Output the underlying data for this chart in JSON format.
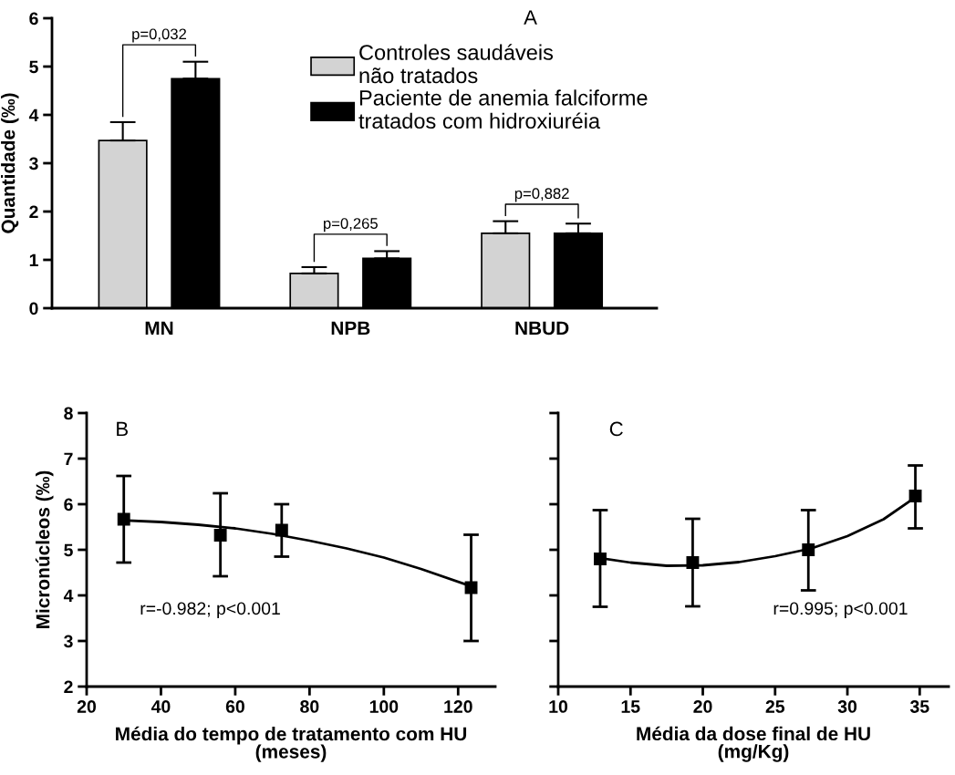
{
  "chart_data": [
    {
      "type": "bar",
      "ylabel": "Quantidade (‰)",
      "categories": [
        "MN",
        "NPB",
        "NBUD"
      ],
      "series": [
        {
          "name": "Controles saudáveis\nnão tratados",
          "color": "#d3d3d3",
          "values": [
            3.47,
            0.72,
            1.55
          ],
          "errors": [
            [
              3.47,
              3.85
            ],
            [
              0.72,
              0.85
            ],
            [
              1.55,
              1.8
            ]
          ]
        },
        {
          "name": "Paciente de anemia falciforme\ntratados com hidroxiuréia",
          "color": "#000000",
          "values": [
            4.75,
            1.03,
            1.55
          ],
          "errors": [
            [
              4.75,
              5.1
            ],
            [
              1.03,
              1.18
            ],
            [
              1.55,
              1.75
            ]
          ]
        }
      ],
      "ylim": [
        0,
        6
      ],
      "yticks": [
        0,
        1,
        2,
        3,
        4,
        5,
        6
      ],
      "legend": "top right",
      "annotations": [
        "p=0,032",
        "p=0,265",
        "p=0,882",
        "A"
      ]
    },
    {
      "type": "scatter",
      "xlabel": "Média do tempo de tratamento com HU\n(meses)",
      "ylabel": "Micronúcleos (‰)",
      "series": [
        {
          "type": "scatter",
          "marker": "square",
          "color": "#000000",
          "x": [
            30,
            56,
            72.5,
            123.5
          ],
          "values": [
            5.67,
            5.32,
            5.43,
            4.17
          ],
          "errors": [
            [
              4.72,
              6.62
            ],
            [
              4.42,
              6.24
            ],
            [
              4.85,
              6.0
            ],
            [
              3.0,
              5.33
            ]
          ]
        },
        {
          "type": "line",
          "color": "#000000",
          "x": [
            31,
            40,
            50,
            60,
            70,
            80,
            90,
            100,
            110,
            123.5
          ],
          "values": [
            5.64,
            5.61,
            5.55,
            5.47,
            5.35,
            5.2,
            5.03,
            4.83,
            4.58,
            4.2
          ]
        }
      ],
      "xlim": [
        20,
        130
      ],
      "xticks": [
        20,
        40,
        60,
        80,
        100,
        120
      ],
      "ylim": [
        2,
        8
      ],
      "yticks": [
        2,
        3,
        4,
        5,
        6,
        7,
        8
      ],
      "annotations": [
        "B",
        "r=-0.982; p<0.001"
      ]
    },
    {
      "type": "scatter",
      "xlabel": "Média da dose final de HU\n(mg/Kg)",
      "tick_labels": "x",
      "series": [
        {
          "type": "scatter",
          "marker": "square",
          "color": "#000000",
          "x": [
            12.9,
            19.3,
            27.3,
            34.7
          ],
          "values": [
            4.8,
            4.72,
            5.0,
            6.18
          ],
          "errors": [
            [
              3.75,
              5.87
            ],
            [
              3.76,
              5.68
            ],
            [
              4.11,
              5.87
            ],
            [
              5.47,
              6.85
            ]
          ]
        },
        {
          "type": "line",
          "color": "#000000",
          "x": [
            12.9,
            15,
            17.5,
            20,
            22.5,
            25,
            27.5,
            30,
            32.5,
            34.7
          ],
          "values": [
            4.82,
            4.72,
            4.65,
            4.66,
            4.73,
            4.86,
            5.03,
            5.3,
            5.67,
            6.15
          ]
        }
      ],
      "xlim": [
        10,
        37
      ],
      "xticks": [
        10,
        15,
        20,
        25,
        30,
        35
      ],
      "ylim": [
        2,
        8
      ],
      "yticks": [
        2,
        3,
        4,
        5,
        6,
        7,
        8
      ],
      "annotations": [
        "C",
        "r=0.995; p<0.001"
      ]
    }
  ]
}
